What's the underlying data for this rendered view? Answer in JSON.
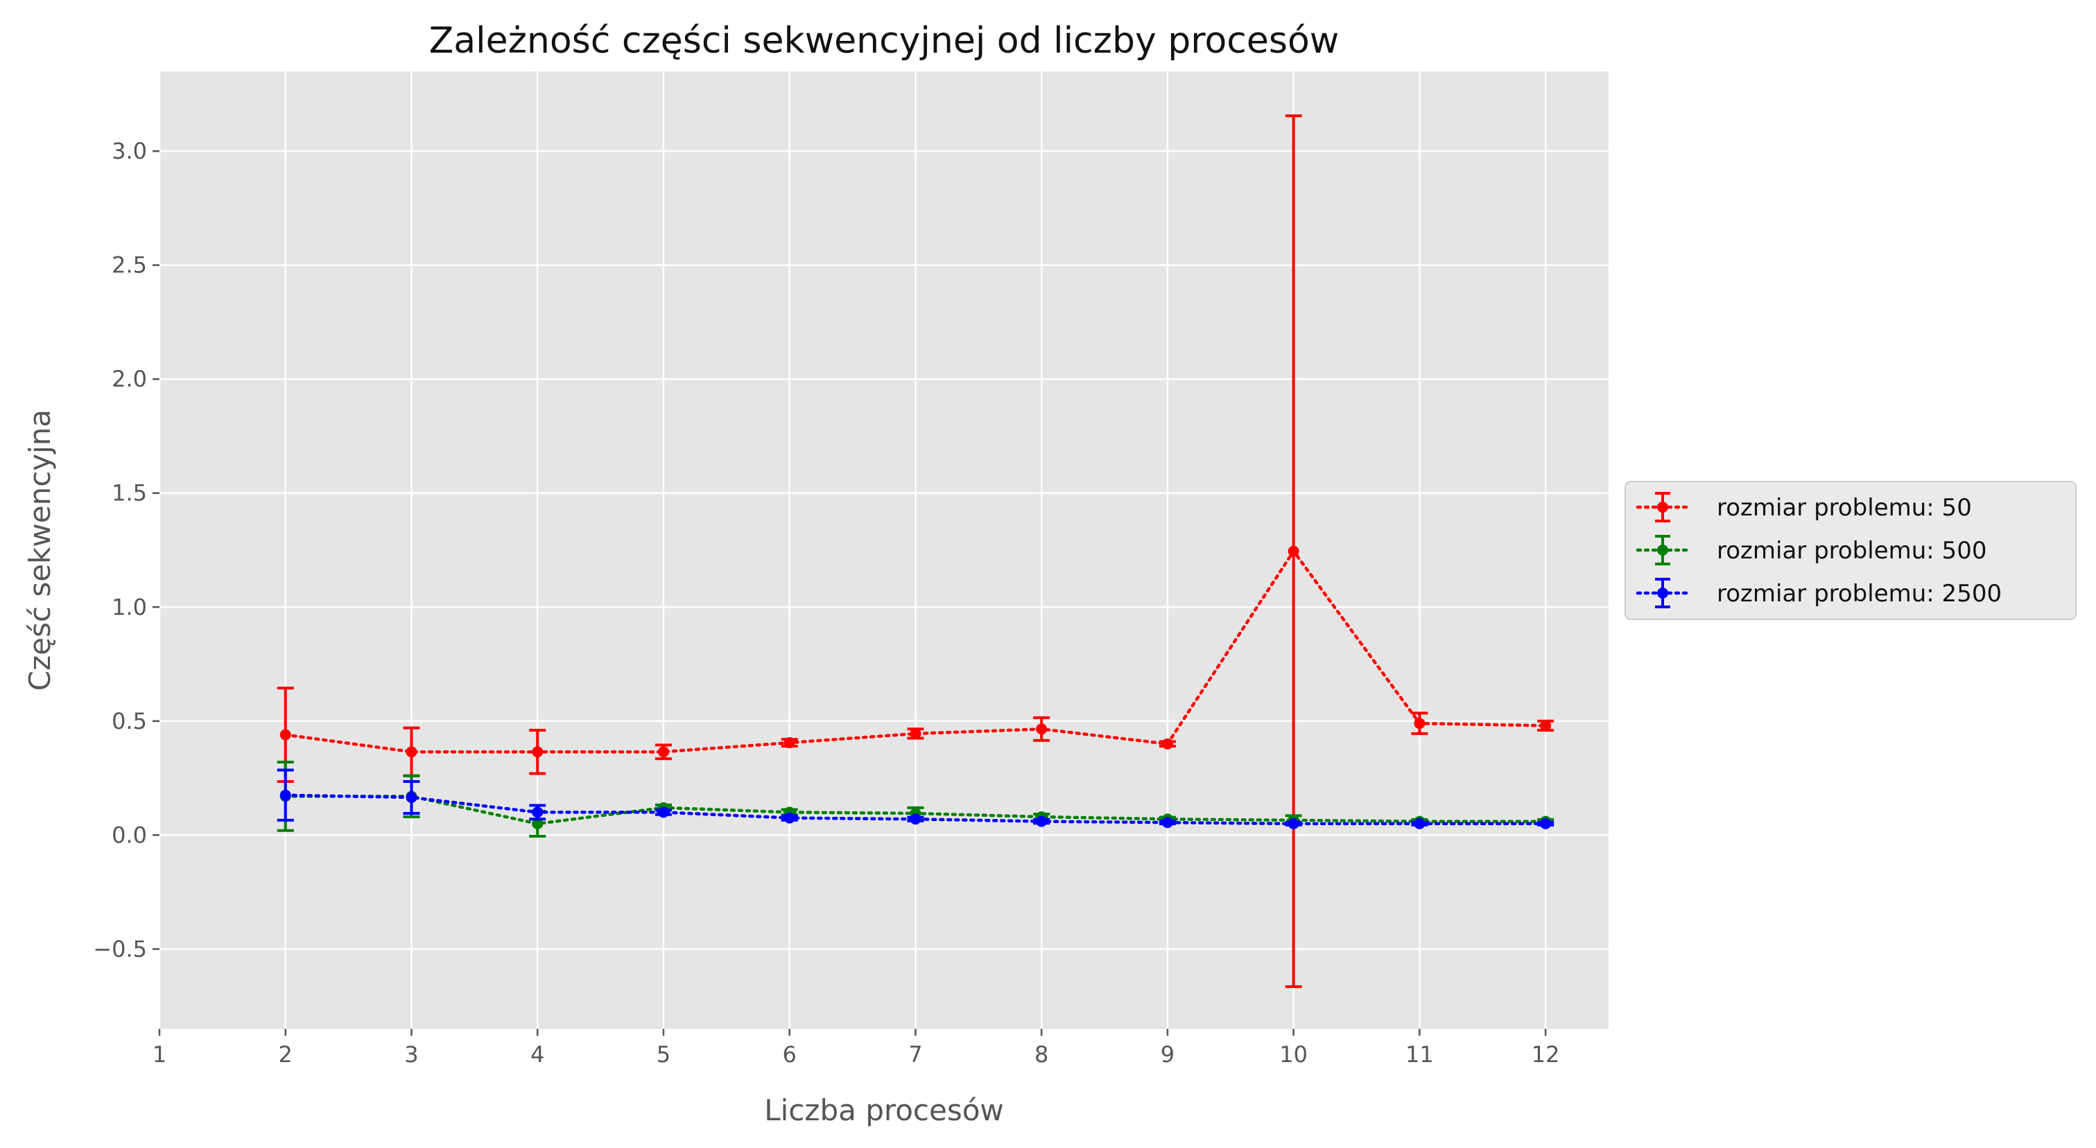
{
  "chart_data": {
    "type": "line",
    "title": "Zależność części sekwencyjnej od liczby procesów",
    "xlabel": "Liczba procesów",
    "ylabel": "Część sekwencyjna",
    "xlim": [
      1,
      12.5
    ],
    "ylim": [
      -0.85,
      3.35
    ],
    "xticks": [
      1,
      2,
      3,
      4,
      5,
      6,
      7,
      8,
      9,
      10,
      11,
      12
    ],
    "yticks": [
      -0.5,
      0.0,
      0.5,
      1.0,
      1.5,
      2.0,
      2.5,
      3.0
    ],
    "ytick_labels": [
      "−0.5",
      "0.0",
      "0.5",
      "1.0",
      "1.5",
      "2.0",
      "2.5",
      "3.0"
    ],
    "grid": true,
    "background": "#e5e5e5",
    "legend_position": "right, outside plot area",
    "line_style": "dotted with circle markers and error bars",
    "x": [
      2,
      3,
      4,
      5,
      6,
      7,
      8,
      9,
      10,
      11,
      12
    ],
    "series": [
      {
        "name": "rozmiar problemu: 50",
        "color": "#ff0000",
        "values": [
          0.44,
          0.365,
          0.365,
          0.365,
          0.405,
          0.445,
          0.465,
          0.4,
          1.245,
          0.49,
          0.48
        ],
        "errors": [
          0.205,
          0.105,
          0.095,
          0.03,
          0.015,
          0.02,
          0.05,
          0.01,
          1.91,
          0.045,
          0.02
        ]
      },
      {
        "name": "rozmiar problemu: 500",
        "color": "#008000",
        "values": [
          0.17,
          0.17,
          0.05,
          0.12,
          0.1,
          0.095,
          0.08,
          0.07,
          0.065,
          0.06,
          0.06
        ],
        "errors": [
          0.15,
          0.09,
          0.055,
          0.012,
          0.012,
          0.025,
          0.012,
          0.008,
          0.02,
          0.008,
          0.008
        ]
      },
      {
        "name": "rozmiar problemu: 2500",
        "color": "#0000ff",
        "values": [
          0.175,
          0.165,
          0.1,
          0.1,
          0.075,
          0.07,
          0.06,
          0.055,
          0.05,
          0.05,
          0.05
        ],
        "errors": [
          0.11,
          0.07,
          0.03,
          0.01,
          0.01,
          0.008,
          0.008,
          0.006,
          0.006,
          0.006,
          0.006
        ]
      }
    ]
  }
}
